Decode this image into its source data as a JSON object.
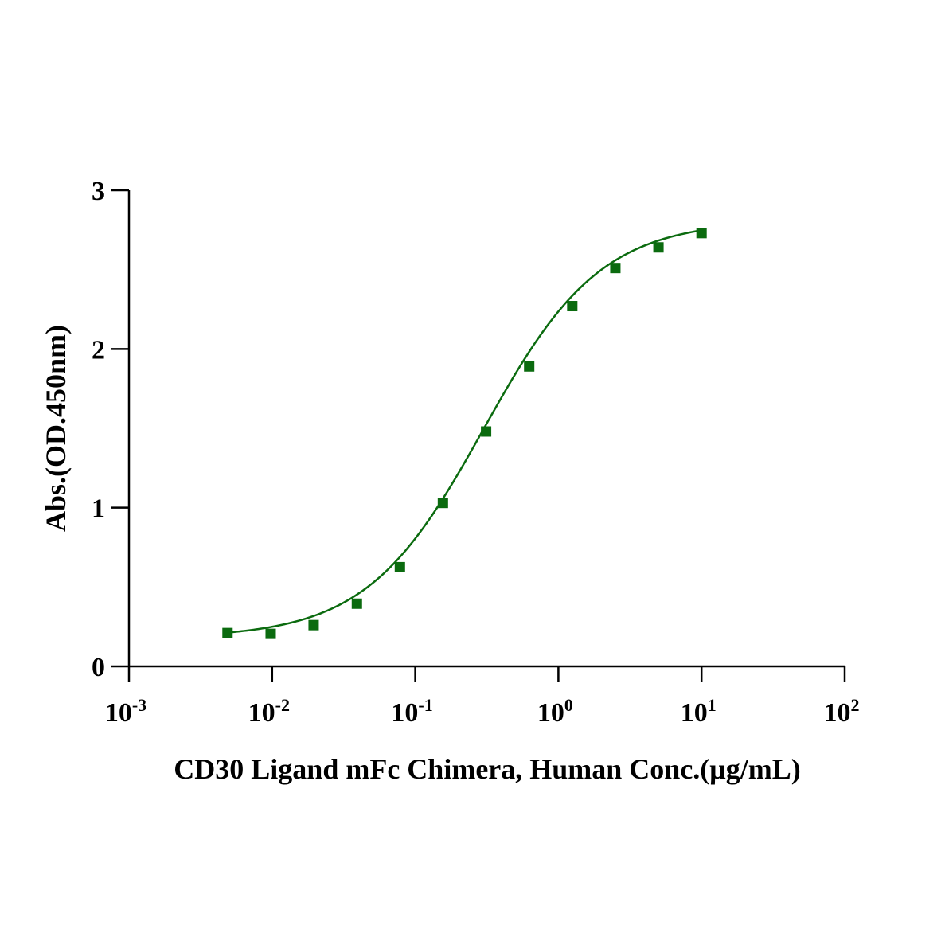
{
  "chart_data": {
    "type": "scatter",
    "title": "",
    "xlabel": "CD30 Ligand mFc Chimera, Human Conc.(μg/mL)",
    "ylabel": "Abs.(OD.450nm)",
    "x_scale": "log",
    "xlim": [
      0.001,
      100
    ],
    "ylim": [
      0,
      3
    ],
    "x_ticks": [
      {
        "value": 0.001,
        "base": "10",
        "exp": "-3"
      },
      {
        "value": 0.01,
        "base": "10",
        "exp": "-2"
      },
      {
        "value": 0.1,
        "base": "10",
        "exp": "-1"
      },
      {
        "value": 1,
        "base": "10",
        "exp": "0"
      },
      {
        "value": 10,
        "base": "10",
        "exp": "1"
      },
      {
        "value": 100,
        "base": "10",
        "exp": "2"
      }
    ],
    "y_ticks": [
      {
        "value": 0,
        "label": "0"
      },
      {
        "value": 1,
        "label": "1"
      },
      {
        "value": 2,
        "label": "2"
      },
      {
        "value": 3,
        "label": "3"
      }
    ],
    "grid": false,
    "legend": "none",
    "color": "#0b6b0f",
    "fit_curve": "4PL",
    "series": [
      {
        "x": [
          0.00488,
          0.00977,
          0.0195,
          0.0391,
          0.0781,
          0.156,
          0.3125,
          0.625,
          1.25,
          2.5,
          5,
          10
        ],
        "y": [
          0.21,
          0.205,
          0.26,
          0.395,
          0.625,
          1.03,
          1.48,
          1.89,
          2.27,
          2.51,
          2.64,
          2.73
        ]
      }
    ]
  }
}
